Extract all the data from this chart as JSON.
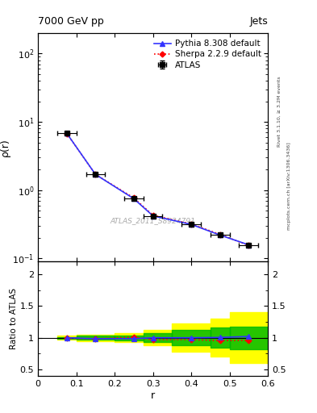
{
  "title": "7000 GeV pp",
  "title_right": "Jets",
  "ylabel_main": "ρ(r)",
  "ylabel_ratio": "Ratio to ATLAS",
  "xlabel": "r",
  "watermark": "ATLAS_2011_S8924791",
  "rivet_label": "Rivet 3.1.10, ≥ 3.2M events",
  "mcplots_label": "mcplots.cern.ch [arXiv:1306.3436]",
  "r_values": [
    0.075,
    0.15,
    0.25,
    0.3,
    0.4,
    0.475,
    0.55
  ],
  "atlas_y": [
    6.8,
    1.7,
    0.75,
    0.42,
    0.32,
    0.22,
    0.155
  ],
  "atlas_xerr": [
    0.025,
    0.025,
    0.025,
    0.025,
    0.025,
    0.025,
    0.025
  ],
  "atlas_yerr": [
    0.15,
    0.05,
    0.02,
    0.015,
    0.012,
    0.01,
    0.008
  ],
  "pythia_y": [
    6.8,
    1.7,
    0.75,
    0.42,
    0.315,
    0.22,
    0.158
  ],
  "sherpa_y": [
    6.75,
    1.7,
    0.77,
    0.43,
    0.32,
    0.225,
    0.155
  ],
  "pythia_ratio": [
    1.0,
    0.985,
    0.985,
    1.0,
    1.0,
    1.005,
    1.02
  ],
  "sherpa_ratio": [
    0.99,
    0.985,
    1.01,
    0.97,
    0.97,
    0.955,
    0.96
  ],
  "band_r_edges": [
    0.05,
    0.1,
    0.2,
    0.275,
    0.35,
    0.45,
    0.5,
    0.6
  ],
  "yellow_band_lo": [
    0.97,
    0.95,
    0.93,
    0.88,
    0.78,
    0.7,
    0.6
  ],
  "yellow_band_hi": [
    1.03,
    1.05,
    1.07,
    1.12,
    1.22,
    1.3,
    1.4
  ],
  "green_band_lo": [
    0.985,
    0.97,
    0.96,
    0.93,
    0.88,
    0.84,
    0.82
  ],
  "green_band_hi": [
    1.015,
    1.03,
    1.04,
    1.07,
    1.12,
    1.16,
    1.18
  ],
  "xlim": [
    0.0,
    0.6
  ],
  "ylim_main": [
    0.09,
    200
  ],
  "ylim_ratio": [
    0.4,
    2.2
  ],
  "pythia_color": "#3333ff",
  "sherpa_color": "#ff0000",
  "atlas_color": "#000000",
  "background_color": "#ffffff",
  "yellow_color": "#ffff00",
  "green_color": "#00bb00"
}
